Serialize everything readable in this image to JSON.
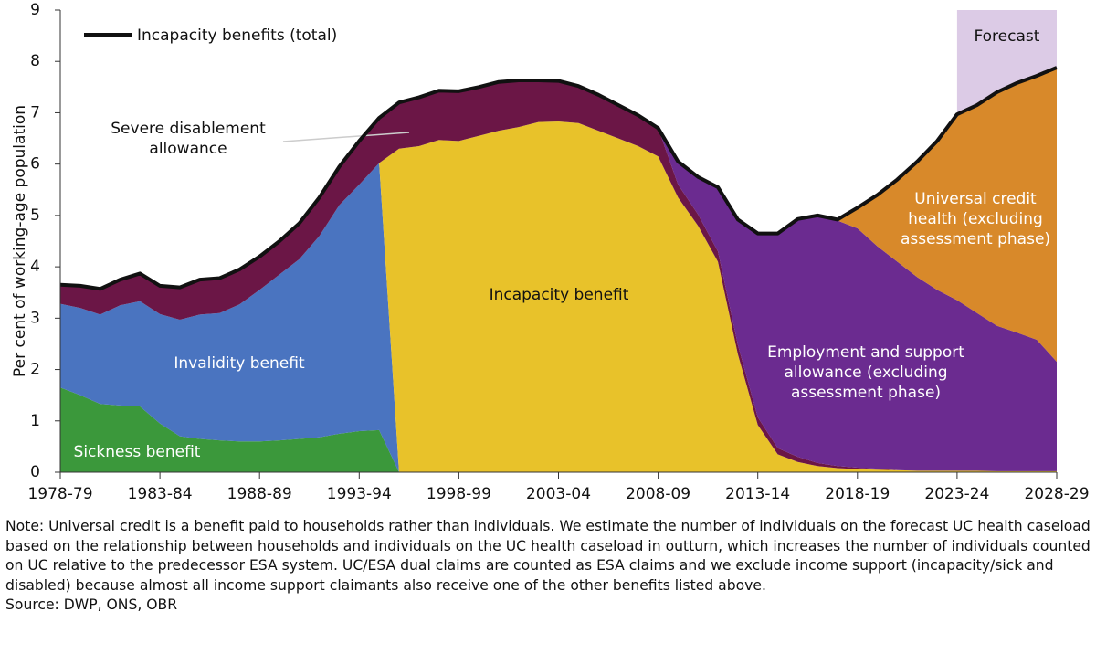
{
  "chart_data": {
    "type": "stacked-area",
    "y_label": "Per cent of working-age population",
    "categories": [
      "1978-79",
      null,
      null,
      null,
      null,
      "1983-84",
      null,
      null,
      null,
      null,
      "1988-89",
      null,
      null,
      null,
      null,
      "1993-94",
      null,
      null,
      null,
      null,
      "1998-99",
      null,
      null,
      null,
      null,
      "2003-04",
      null,
      null,
      null,
      null,
      "2008-09",
      null,
      null,
      null,
      null,
      "2013-14",
      null,
      null,
      null,
      null,
      "2018-19",
      null,
      null,
      null,
      null,
      "2023-24",
      null,
      null,
      null,
      null,
      "2028-29"
    ],
    "ylim": [
      0,
      9
    ],
    "yticks": [
      0,
      1,
      2,
      3,
      4,
      5,
      6,
      7,
      8,
      9
    ],
    "forecast": {
      "label": "Forecast",
      "from": "2023-24",
      "color": "#dccbe6"
    },
    "legend": "upper left",
    "series": [
      {
        "name": "Sickness benefit",
        "color": "#3b983b",
        "text_color": "#ffffff",
        "values": [
          1.65,
          1.5,
          1.33,
          1.3,
          1.28,
          0.95,
          0.7,
          0.65,
          0.62,
          0.6,
          0.6,
          0.62,
          0.65,
          0.68,
          0.75,
          0.8,
          0.82,
          0,
          0,
          0,
          0,
          0,
          0,
          0,
          0,
          0,
          0,
          0,
          0,
          0,
          0,
          0,
          0,
          0,
          0,
          0,
          0,
          0,
          0,
          0,
          0,
          0,
          0,
          0,
          0,
          0,
          0,
          0,
          0,
          0,
          0
        ]
      },
      {
        "name": "Invalidity benefit",
        "color": "#4a74c0",
        "text_color": "#ffffff",
        "values": [
          1.63,
          1.7,
          1.74,
          1.95,
          2.05,
          2.13,
          2.27,
          2.42,
          2.48,
          2.67,
          2.95,
          3.23,
          3.5,
          3.92,
          4.45,
          4.8,
          5.2,
          0,
          0,
          0,
          0,
          0,
          0,
          0,
          0,
          0,
          0,
          0,
          0,
          0,
          0,
          0,
          0,
          0,
          0,
          0,
          0,
          0,
          0,
          0,
          0,
          0,
          0,
          0,
          0,
          0,
          0,
          0,
          0,
          0,
          0
        ]
      },
      {
        "name": "Incapacity benefit",
        "color": "#e8c22a",
        "text_color": "#111111",
        "values": [
          0,
          0,
          0,
          0,
          0,
          0,
          0,
          0,
          0,
          0,
          0,
          0,
          0,
          0,
          0,
          0,
          0,
          6.3,
          6.35,
          6.47,
          6.45,
          6.55,
          6.65,
          6.72,
          6.82,
          6.83,
          6.8,
          6.65,
          6.5,
          6.35,
          6.15,
          5.35,
          4.8,
          4.1,
          2.3,
          0.92,
          0.35,
          0.2,
          0.12,
          0.08,
          0.06,
          0.05,
          0.04,
          0.03,
          0.03,
          0.03,
          0.03,
          0.02,
          0.02,
          0.02,
          0.02
        ]
      },
      {
        "name": "Severe disablement allowance",
        "color": "#6b1646",
        "text_color": "#111111",
        "values": [
          0.37,
          0.43,
          0.5,
          0.5,
          0.54,
          0.55,
          0.63,
          0.68,
          0.68,
          0.68,
          0.65,
          0.65,
          0.7,
          0.75,
          0.75,
          0.85,
          0.88,
          0.9,
          0.95,
          0.96,
          0.97,
          0.95,
          0.95,
          0.91,
          0.81,
          0.79,
          0.72,
          0.7,
          0.65,
          0.6,
          0.55,
          0.25,
          0.22,
          0.2,
          0.18,
          0.15,
          0.12,
          0.1,
          0.06,
          0.04,
          0.03,
          0.02,
          0,
          0,
          0,
          0,
          0,
          0,
          0,
          0,
          0
        ]
      },
      {
        "name": "Employment and support allowance (excluding assessment phase)",
        "color": "#6b2b90",
        "text_color": "#ffffff",
        "values": [
          0,
          0,
          0,
          0,
          0,
          0,
          0,
          0,
          0,
          0,
          0,
          0,
          0,
          0,
          0,
          0,
          0,
          0,
          0,
          0,
          0,
          0,
          0,
          0,
          0,
          0,
          0,
          0,
          0,
          0,
          0,
          0.45,
          0.73,
          1.25,
          2.44,
          3.58,
          4.18,
          4.63,
          4.79,
          4.78,
          4.66,
          4.33,
          4.06,
          3.77,
          3.52,
          3.32,
          3.07,
          2.83,
          2.7,
          2.56,
          2.13
        ]
      },
      {
        "name": "Universal credit health (excluding assessment phase)",
        "color": "#d8892a",
        "text_color": "#ffffff",
        "values": [
          0,
          0,
          0,
          0,
          0,
          0,
          0,
          0,
          0,
          0,
          0,
          0,
          0,
          0,
          0,
          0,
          0,
          0,
          0,
          0,
          0,
          0,
          0,
          0,
          0,
          0,
          0,
          0,
          0,
          0,
          0,
          0,
          0,
          0,
          0,
          0,
          0,
          0,
          0.03,
          0.02,
          0.4,
          1.0,
          1.6,
          2.25,
          2.9,
          3.62,
          4.05,
          4.55,
          4.86,
          5.14,
          5.73
        ]
      },
      {
        "name": "Incapacity benefits (total)",
        "color": "#111111",
        "type": "line",
        "values": [
          3.65,
          3.63,
          3.57,
          3.75,
          3.87,
          3.63,
          3.6,
          3.75,
          3.78,
          3.95,
          4.2,
          4.5,
          4.85,
          5.35,
          5.95,
          6.45,
          6.9,
          7.2,
          7.3,
          7.43,
          7.42,
          7.5,
          7.6,
          7.63,
          7.63,
          7.62,
          7.52,
          7.35,
          7.15,
          6.95,
          6.7,
          6.05,
          5.75,
          5.55,
          4.92,
          4.65,
          4.65,
          4.93,
          5.0,
          4.92,
          5.15,
          5.4,
          5.7,
          6.05,
          6.45,
          6.97,
          7.15,
          7.4,
          7.58,
          7.72,
          7.88
        ]
      }
    ]
  },
  "note": "Note: Universal credit is a benefit paid to households rather than individuals. We estimate the number of individuals on the forecast UC health caseload based on the relationship between households and individuals on the UC health caseload in outturn, which increases the number of individuals counted on UC relative to the predecessor ESA system. UC/ESA dual claims are counted as ESA claims and we exclude income support (incapacity/sick and disabled) because almost all income support claimants also receive one of the other benefits listed above.",
  "source": "Source: DWP, ONS, OBR"
}
